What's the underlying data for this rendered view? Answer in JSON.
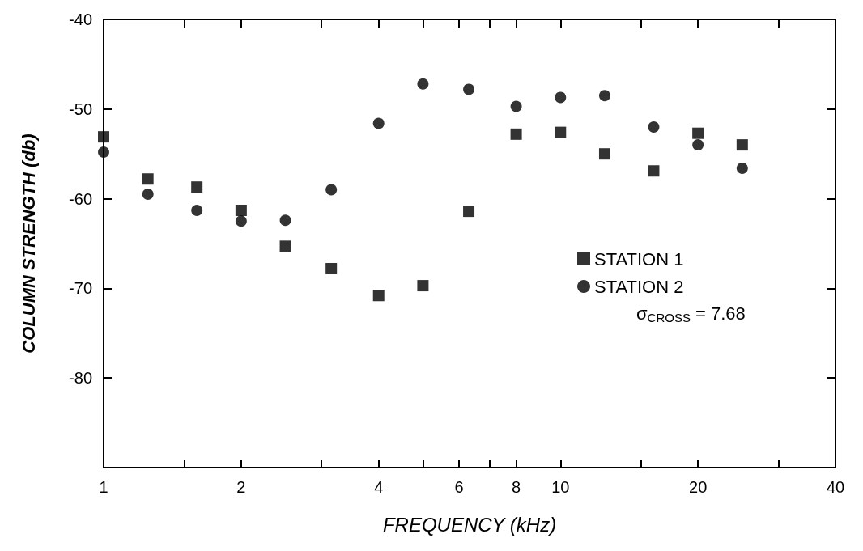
{
  "chart_data": {
    "type": "scatter",
    "xlabel": "FREQUENCY (kHz)",
    "ylabel": "COLUMN STRENGTH (db)",
    "log": "x",
    "xlim": [
      1,
      40
    ],
    "ylim": [
      -90,
      -40
    ],
    "xticks": [
      1,
      {
        "value": 1.5,
        "label": null
      },
      2,
      {
        "value": 3,
        "label": null
      },
      4,
      {
        "value": 5,
        "label": null
      },
      6,
      {
        "value": 7,
        "label": null
      },
      8,
      10,
      {
        "value": 15,
        "label": null
      },
      20,
      {
        "value": 30,
        "label": null
      },
      40
    ],
    "yticks": [
      -40,
      -50,
      -60,
      -70,
      -80,
      {
        "value": -90,
        "label": null
      }
    ],
    "grid": false,
    "legend": "right",
    "x": [
      1,
      1.25,
      1.6,
      2,
      2.5,
      3.15,
      4,
      5,
      6.3,
      8,
      10,
      12.5,
      16,
      20,
      25
    ],
    "series": [
      {
        "name": "STATION 1",
        "color": "#000000",
        "marker": "square",
        "values": [
          -53.1,
          -57.8,
          -58.7,
          -61.3,
          -65.3,
          -67.8,
          -70.8,
          -69.7,
          -61.4,
          -52.8,
          -52.6,
          -55.0,
          -56.9,
          -52.7,
          -54.0
        ]
      },
      {
        "name": "STATION 2",
        "color": "#000000",
        "marker": "circle",
        "values": [
          -54.8,
          -59.5,
          -61.3,
          -62.5,
          -62.4,
          -59.0,
          -51.6,
          -47.2,
          -47.8,
          -49.7,
          -48.7,
          -48.5,
          -52.0,
          -54.0,
          -56.6
        ]
      }
    ],
    "annotations": [
      "σ$_{CROSS}$ = 7.68"
    ]
  }
}
